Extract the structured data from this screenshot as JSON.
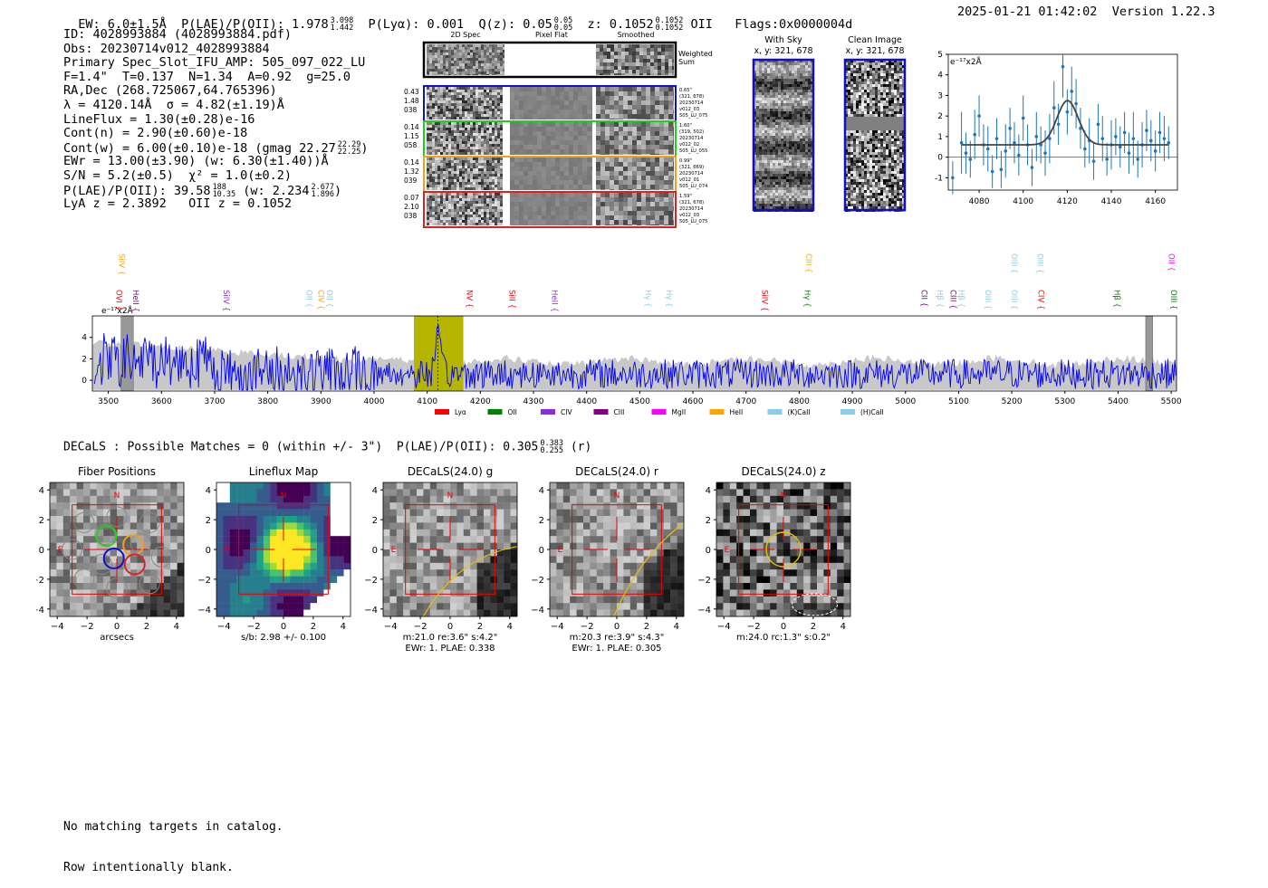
{
  "header": {
    "ew": "EW: 6.0±1.5Å",
    "plae_label": "P(LAE)/P(OII): 1.978",
    "plae_hi": "3.098",
    "plae_lo": "1.442",
    "plya": "P(Lyα): 0.001",
    "qz_label": "Q(z): 0.05",
    "qz_hi": "0.05",
    "qz_lo": "0.05",
    "z_label": "z: 0.1052",
    "z_hi": "0.1052",
    "z_lo": "0.1052",
    "z_line": "OII",
    "flags": "Flags:0x0000004d",
    "datetime": "2025-01-21 01:42:02",
    "version": "Version 1.22.3"
  },
  "info": {
    "id": "ID: 4028993884 (4028993884.pdf)",
    "obs": "Obs: 20230714v012_4028993884",
    "primary": "Primary Spec_Slot_IFU_AMP: 505_097_022_LU",
    "params": "F=1.4\"  T=0.137  N=1.34  A=0.92  g=25.0",
    "radec": "RA,Dec (268.725067,64.765396)",
    "lambda": "λ = 4120.14Å  σ = 4.82(±1.19)Å",
    "lineflux": "LineFlux = 1.30(±0.28)e-16",
    "contn": "Cont(n) = 2.90(±0.60)e-18",
    "contw": "Cont(w) = 6.00(±0.10)e-18 (gmag 22.27",
    "contw_hi": "22.29",
    "contw_lo": "22.25",
    "contw_end": ")",
    "ewr": "EWr = 13.00(±3.90) (w: 6.30(±1.40))Å",
    "sn": "S/N = 5.2(±0.5)  χ² = 1.0(±0.2)",
    "plae": "P(LAE)/P(OII): 39.58",
    "plae_hi": "188",
    "plae_lo": "10.35",
    "plae_w": "(w: 2.234",
    "plae_w_hi": "2.677",
    "plae_w_lo": "1.896",
    "plae_w_end": ")",
    "lya_z": "LyA z = 2.3892   OII z = 0.1052"
  },
  "cutouts": {
    "col_labels": [
      "2D Spec",
      "Pixel Flat",
      "Smoothed"
    ],
    "sum_label": [
      "Weighted",
      "Sum"
    ],
    "rows": [
      {
        "left": [
          "0.43",
          "1.48",
          "038"
        ],
        "right": [
          "0.65\"",
          "(321, 678)",
          "20230714",
          "v012_03",
          "505_LU_075"
        ],
        "color": "#1010d0"
      },
      {
        "left": [
          "0.14",
          "1.15",
          "058"
        ],
        "right": [
          "1.60\"",
          "(319, 502)",
          "20230714",
          "v012_02",
          "505_LU_055"
        ],
        "color": "#20d020"
      },
      {
        "left": [
          "0.14",
          "1.32",
          "039"
        ],
        "right": [
          "0.99\"",
          "(321, 669)",
          "20230714",
          "v012_01",
          "505_LU_074"
        ],
        "color": "#f0a020"
      },
      {
        "left": [
          "0.07",
          "2.10",
          "038"
        ],
        "right": [
          "1.59\"",
          "(321, 678)",
          "20230714",
          "v012_03",
          "505_LU_075"
        ],
        "color": "#e02020"
      }
    ]
  },
  "sky": {
    "with_sky_title": "With Sky",
    "with_sky_coords": "x, y: 321, 678",
    "clean_title": "Clean Image",
    "clean_coords": "x, y: 321, 678"
  },
  "chart_data": [
    {
      "type": "scatter",
      "name_role": "line-fit",
      "unit_label": "e⁻¹⁷x2Å",
      "xlim": [
        4066,
        4170
      ],
      "ylim": [
        -1.6,
        5
      ],
      "xticks": [
        4080,
        4100,
        4120,
        4140,
        4160
      ],
      "yticks": [
        -1,
        0,
        1,
        2,
        3,
        4,
        5
      ],
      "points": [
        [
          4068,
          -1.0,
          0.8
        ],
        [
          4072,
          0.7,
          1.5
        ],
        [
          4074,
          0.2,
          1.0
        ],
        [
          4076,
          -0.1,
          0.9
        ],
        [
          4078,
          1.1,
          1.2
        ],
        [
          4080,
          2.0,
          1.0
        ],
        [
          4082,
          0.6,
          1.0
        ],
        [
          4084,
          0.4,
          1.1
        ],
        [
          4086,
          -0.7,
          0.8
        ],
        [
          4088,
          0.9,
          1.0
        ],
        [
          4090,
          -0.6,
          0.9
        ],
        [
          4092,
          0.3,
          1.3
        ],
        [
          4094,
          1.4,
          1.0
        ],
        [
          4096,
          0.7,
          1.0
        ],
        [
          4098,
          0.1,
          1.0
        ],
        [
          4100,
          1.9,
          1.1
        ],
        [
          4102,
          0.6,
          1.0
        ],
        [
          4104,
          -0.5,
          0.9
        ],
        [
          4106,
          1.0,
          1.2
        ],
        [
          4108,
          0.6,
          0.9
        ],
        [
          4110,
          0.2,
          1.1
        ],
        [
          4112,
          0.9,
          1.2
        ],
        [
          4114,
          2.4,
          1.3
        ],
        [
          4116,
          1.6,
          1.0
        ],
        [
          4118,
          4.4,
          1.5
        ],
        [
          4120,
          2.2,
          1.1
        ],
        [
          4122,
          3.2,
          1.2
        ],
        [
          4124,
          2.6,
          1.2
        ],
        [
          4126,
          1.4,
          1.0
        ],
        [
          4128,
          0.4,
          0.9
        ],
        [
          4130,
          0.8,
          1.1
        ],
        [
          4132,
          -0.2,
          0.9
        ],
        [
          4134,
          1.6,
          1.0
        ],
        [
          4136,
          0.9,
          1.1
        ],
        [
          4138,
          -0.1,
          0.8
        ],
        [
          4140,
          0.6,
          1.2
        ],
        [
          4142,
          1.0,
          0.9
        ],
        [
          4144,
          0.5,
          1.0
        ],
        [
          4146,
          1.2,
          1.0
        ],
        [
          4148,
          0.2,
          1.0
        ],
        [
          4150,
          0.9,
          1.3
        ],
        [
          4152,
          -0.1,
          0.9
        ],
        [
          4154,
          0.6,
          1.1
        ],
        [
          4156,
          1.3,
          1.0
        ],
        [
          4158,
          0.8,
          1.0
        ],
        [
          4160,
          0.3,
          1.0
        ],
        [
          4162,
          1.2,
          1.0
        ],
        [
          4164,
          0.9,
          1.1
        ],
        [
          4166,
          0.7,
          0.8
        ]
      ],
      "fit": {
        "center": 4120.14,
        "sigma": 4.82,
        "amplitude": 2.15,
        "continuum": 0.6
      }
    },
    {
      "type": "line",
      "name_role": "full-spectrum",
      "unit_label": "e⁻¹⁷x2Å",
      "xlim": [
        3470,
        5510
      ],
      "ylim": [
        -1,
        6
      ],
      "xticks": [
        3500,
        3600,
        3700,
        3800,
        3900,
        4000,
        4100,
        4200,
        4300,
        4400,
        4500,
        4600,
        4700,
        4800,
        4900,
        5000,
        5100,
        5200,
        5300,
        5400,
        5500
      ],
      "yticks": [
        0,
        2,
        4
      ],
      "highlight": [
        4075,
        4168
      ],
      "marker": 4120.14,
      "masked": [
        [
          3524,
          3547
        ],
        [
          5452,
          5465
        ]
      ],
      "seed": 7,
      "legend": [
        {
          "label": "Lyα",
          "color": "#ff0000"
        },
        {
          "label": "OII",
          "color": "#008000"
        },
        {
          "label": "CIV",
          "color": "#8a2be2"
        },
        {
          "label": "CIII",
          "color": "#800080"
        },
        {
          "label": "MgII",
          "color": "#ff00ff"
        },
        {
          "label": "HeII",
          "color": "#ffa500"
        },
        {
          "label": "(K)CaII",
          "color": "#87ceeb"
        },
        {
          "label": "(H)CaII",
          "color": "#87ceeb"
        }
      ],
      "lines_upper": [
        {
          "x": 3515,
          "label": "SiIV",
          "color": "#ffa500"
        },
        {
          "x": 4808,
          "label": "CIII",
          "color": "#ffa500"
        },
        {
          "x": 5195,
          "label": "OIII",
          "color": "#87ceeb"
        },
        {
          "x": 5243,
          "label": "OIII",
          "color": "#87ceeb"
        },
        {
          "x": 5490,
          "label": "OII",
          "color": "#ff00ff"
        }
      ],
      "lines_lower": [
        {
          "x": 3510,
          "label": "OVI",
          "color": "#ff0000"
        },
        {
          "x": 3542,
          "label": "HeII",
          "color": "#800080"
        },
        {
          "x": 3712,
          "label": "SiIV",
          "color": "#8a2be2"
        },
        {
          "x": 3868,
          "label": "OII",
          "color": "#87ceeb"
        },
        {
          "x": 3890,
          "label": "CIV",
          "color": "#ffa500"
        },
        {
          "x": 3906,
          "label": "OII",
          "color": "#87ceeb"
        },
        {
          "x": 4170,
          "label": "NV",
          "color": "#ff0000"
        },
        {
          "x": 4250,
          "label": "SiII",
          "color": "#ff0000"
        },
        {
          "x": 4330,
          "label": "HeII",
          "color": "#8a2be2"
        },
        {
          "x": 4505,
          "label": "Hγ",
          "color": "#87ceeb"
        },
        {
          "x": 4545,
          "label": "Hγ",
          "color": "#87ceeb"
        },
        {
          "x": 4725,
          "label": "SiIV",
          "color": "#ff0000"
        },
        {
          "x": 4805,
          "label": "Hγ",
          "color": "#008000"
        },
        {
          "x": 5025,
          "label": "CII",
          "color": "#800080"
        },
        {
          "x": 5055,
          "label": "Hβ",
          "color": "#87ceeb"
        },
        {
          "x": 5080,
          "label": "CIII",
          "color": "#800080"
        },
        {
          "x": 5095,
          "label": "Hβ",
          "color": "#87ceeb"
        },
        {
          "x": 5145,
          "label": "OIII",
          "color": "#87ceeb"
        },
        {
          "x": 5195,
          "label": "OIII",
          "color": "#87ceeb"
        },
        {
          "x": 5245,
          "label": "CIV",
          "color": "#ff0000"
        },
        {
          "x": 5388,
          "label": "Hβ",
          "color": "#008000"
        },
        {
          "x": 5495,
          "label": "OIII",
          "color": "#008000"
        }
      ]
    }
  ],
  "decals_title_prefix": "DECaLS : Possible Matches = 0 (within +/- 3\")  P(LAE)/P(OII): 0.305",
  "decals_hi": "0.383",
  "decals_lo": "0.255",
  "decals_suffix": "(r)",
  "panels": [
    {
      "title": "Fiber Positions",
      "xlabel": "arcsecs",
      "sub2": "",
      "kind": "fiber"
    },
    {
      "title": "Lineflux Map",
      "xlabel": "s/b: 2.98 +/- 0.100",
      "sub2": "",
      "kind": "flux"
    },
    {
      "title": "DECaLS(24.0) g",
      "xlabel": "m:21.0  re:3.6\"  s:4.2\"",
      "sub2": "EWr: 1. PLAE: 0.338",
      "kind": "g"
    },
    {
      "title": "DECaLS(24.0) r",
      "xlabel": "m:20.3  re:3.9\"  s:4.3\"",
      "sub2": "EWr: 1. PLAE: 0.305",
      "kind": "r"
    },
    {
      "title": "DECaLS(24.0) z",
      "xlabel": "m:24.0 rc:1.3\"  s:0.2\"",
      "sub2": "",
      "kind": "z"
    }
  ],
  "panel_ticks": [
    "−4",
    "−2",
    "0",
    "2",
    "4"
  ],
  "panel_y_ticks": [
    "4",
    "2",
    "0",
    "−2",
    "−4"
  ],
  "compass": {
    "n": "N",
    "e": "E"
  },
  "footer": [
    "No matching targets in catalog.",
    "Row intentionally blank."
  ]
}
